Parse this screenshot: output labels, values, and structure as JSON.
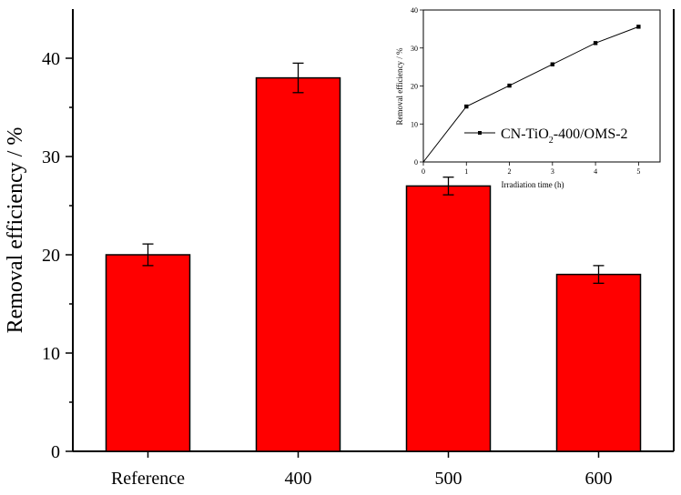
{
  "chart_data": [
    {
      "type": "bar",
      "categories": [
        "Reference",
        "400",
        "500",
        "600"
      ],
      "values": [
        20,
        38,
        27,
        18
      ],
      "errors": [
        1.1,
        1.5,
        0.9,
        0.9
      ],
      "ylabel": "Removal efficiency / %",
      "xlabel": "",
      "ylim": [
        0,
        45
      ],
      "yticks": [
        "0",
        "10",
        "20",
        "30",
        "40"
      ],
      "bar_color": "#ff0000",
      "grid": false
    },
    {
      "type": "line",
      "x": [
        0,
        1,
        2,
        3,
        4,
        5
      ],
      "series": [
        {
          "name": "CN-TiO2-400/OMS-2",
          "name_main": "CN-TiO",
          "name_sub": "2",
          "name_tail": "-400/OMS-2",
          "values": [
            0,
            14.6,
            20.1,
            25.7,
            31.3,
            35.6
          ]
        }
      ],
      "xlabel": "Irradiation time (h)",
      "ylabel": "Removal efficiency / %",
      "xlim": [
        0,
        5.5
      ],
      "ylim": [
        0,
        40
      ],
      "xticks": [
        "0",
        "1",
        "2",
        "3",
        "4",
        "5"
      ],
      "yticks": [
        "0",
        "10",
        "20",
        "30",
        "40"
      ],
      "legend": "right",
      "grid": false
    }
  ]
}
